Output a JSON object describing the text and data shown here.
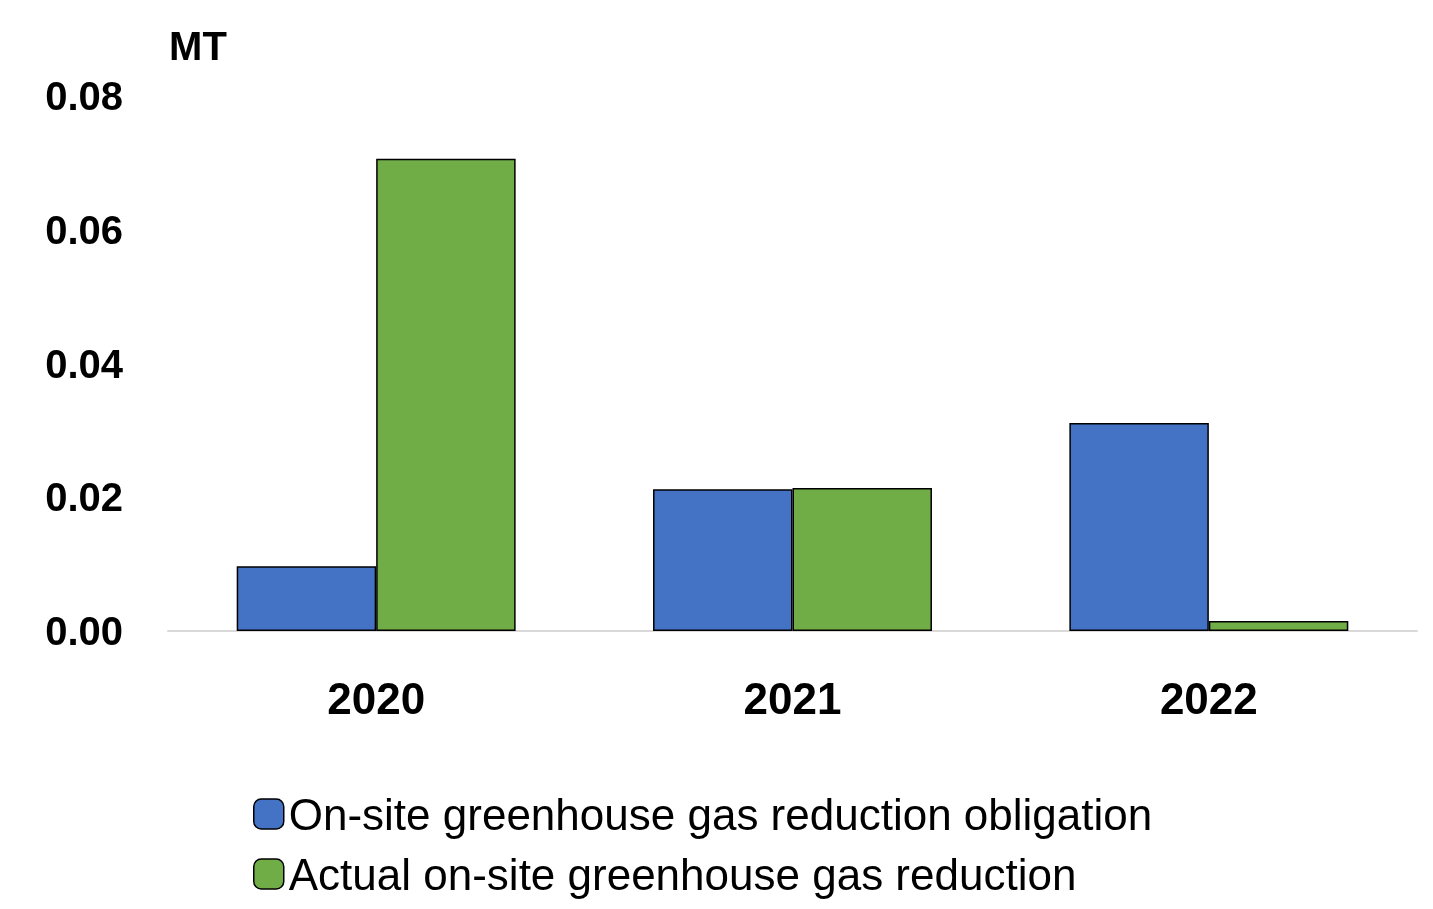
{
  "chart_data": {
    "type": "bar",
    "ylabel": "MT",
    "categories": [
      "2020",
      "2021",
      "2022"
    ],
    "series": [
      {
        "name": "On-site greenhouse gas reduction obligation",
        "color": "#4472c4",
        "values": [
          0.0097,
          0.0212,
          0.0311
        ]
      },
      {
        "name": "Actual on-site greenhouse gas reduction",
        "color": "#70ad47",
        "values": [
          0.0706,
          0.0214,
          0.0015
        ]
      }
    ],
    "ylim": [
      0,
      0.08
    ],
    "yticks": [
      {
        "value": 0,
        "label": "0.00"
      },
      0.02,
      0.04,
      0.06,
      0.08
    ],
    "grid": false,
    "legend": "bottom"
  }
}
